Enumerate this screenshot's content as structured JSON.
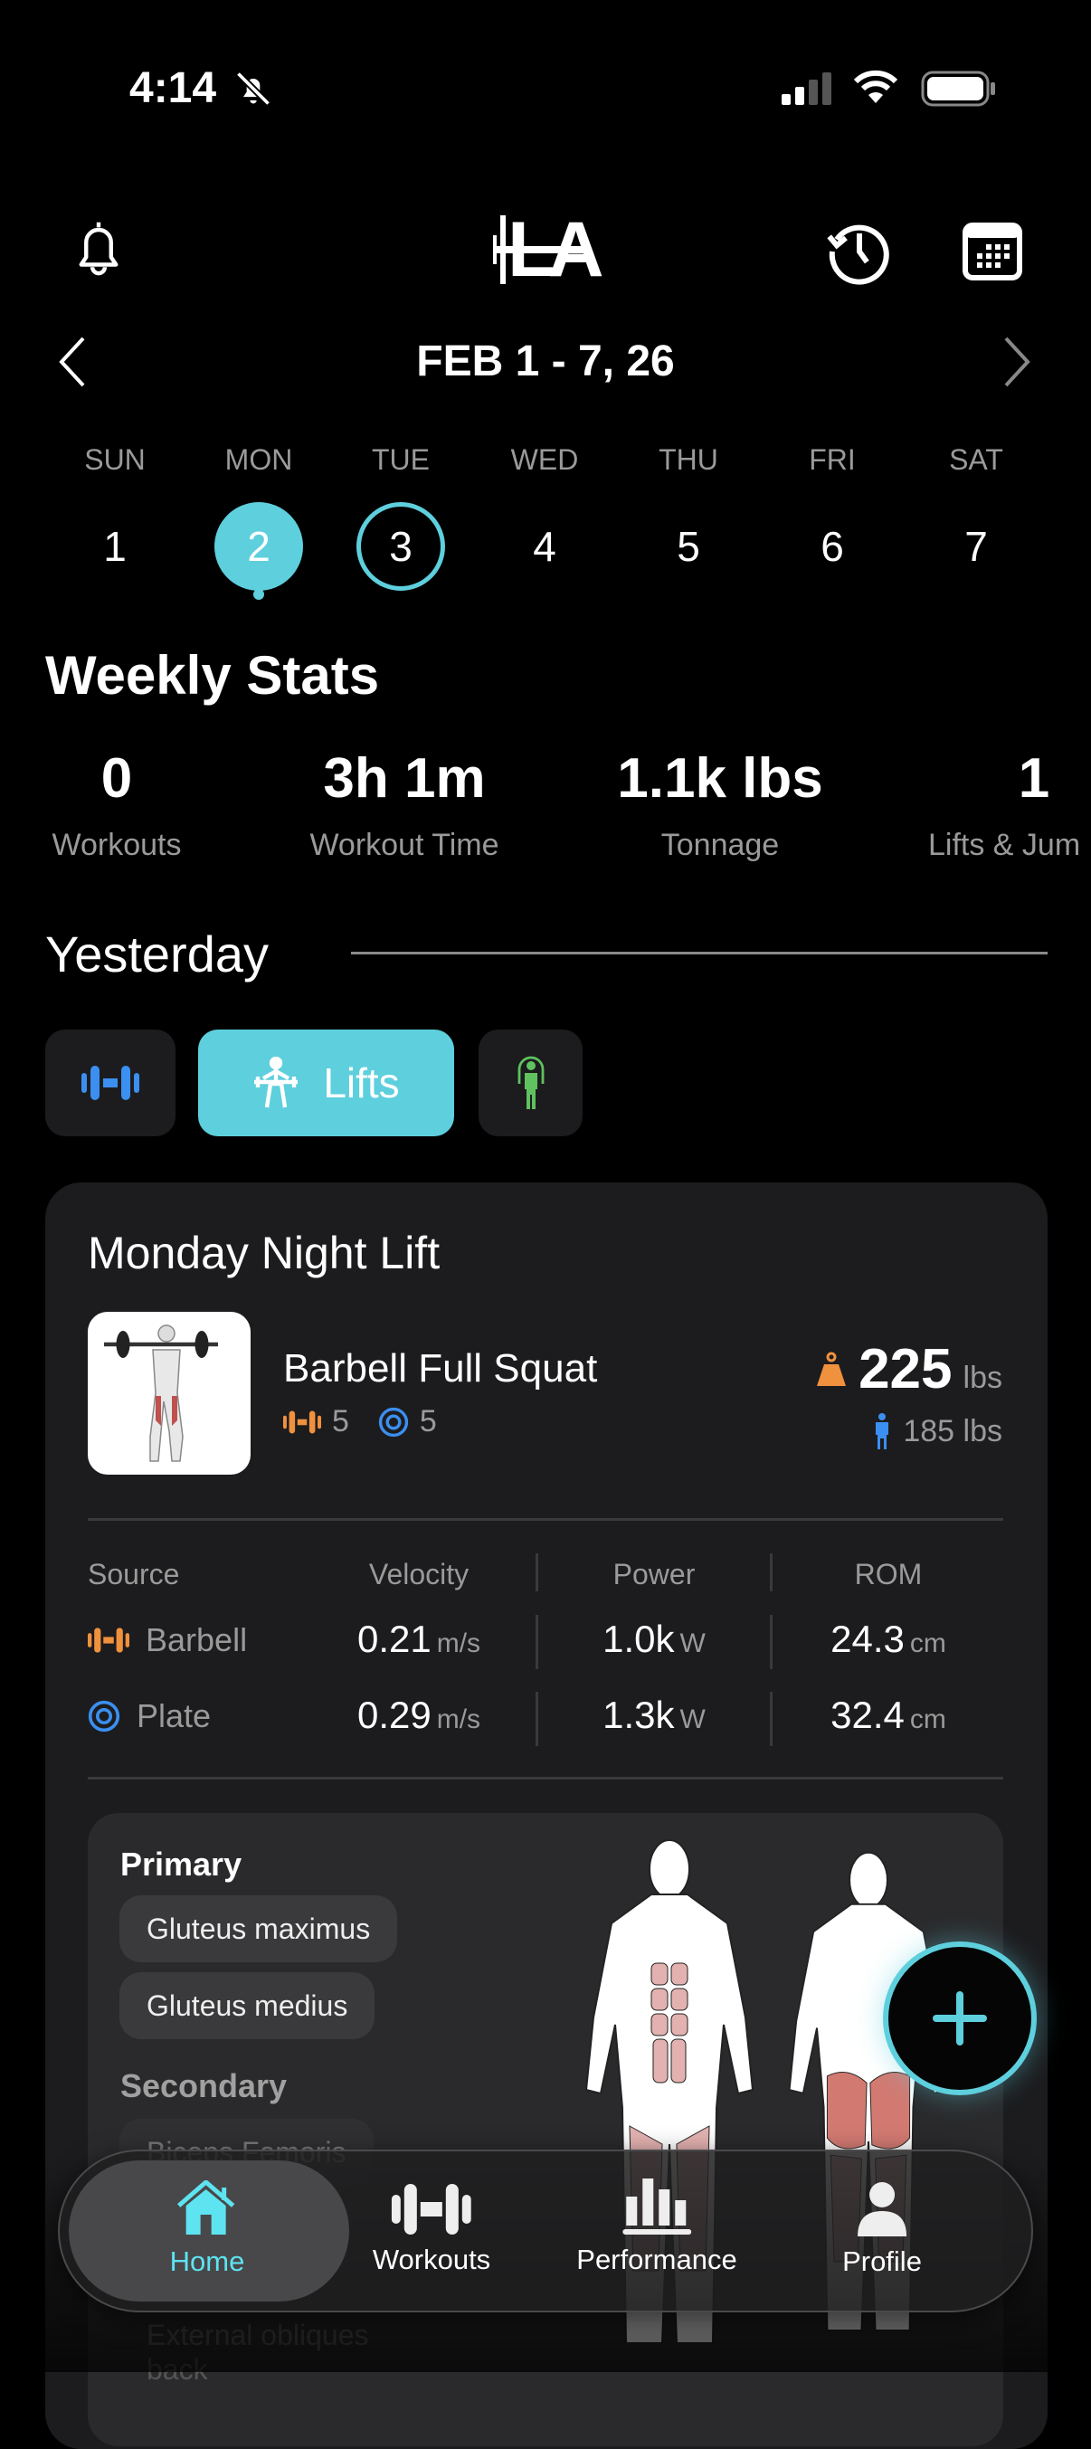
{
  "status_bar": {
    "time": "4:14",
    "icons": [
      "bell-slash-icon",
      "signal-icon",
      "wifi-icon",
      "battery-icon"
    ]
  },
  "header": {
    "logo": "LA",
    "icons": [
      "bell-icon",
      "history-icon",
      "calendar-icon"
    ]
  },
  "week_nav": {
    "label": "FEB 1 - 7, 26"
  },
  "days": [
    {
      "label": "SUN",
      "num": "1"
    },
    {
      "label": "MON",
      "num": "2",
      "selected": true,
      "has_activity": true
    },
    {
      "label": "TUE",
      "num": "3",
      "today": true
    },
    {
      "label": "WED",
      "num": "4"
    },
    {
      "label": "THU",
      "num": "5"
    },
    {
      "label": "FRI",
      "num": "6"
    },
    {
      "label": "SAT",
      "num": "7"
    }
  ],
  "weekly_stats": {
    "title": "Weekly Stats",
    "items": [
      {
        "value": "0",
        "label": "Workouts"
      },
      {
        "value": "3h 1m",
        "label": "Workout Time"
      },
      {
        "value": "1.1k lbs",
        "label": "Tonnage"
      },
      {
        "value": "1",
        "label": "Lifts & Jum"
      }
    ]
  },
  "section": {
    "title": "Yesterday"
  },
  "filters": {
    "lifts_label": "Lifts",
    "icons": [
      "dumbbell-icon",
      "weightlifter-icon",
      "jump-rope-icon"
    ]
  },
  "workout": {
    "title": "Monday Night Lift",
    "exercise": {
      "name": "Barbell Full Squat",
      "barbell_reps": "5",
      "plate_reps": "5",
      "weight": "225",
      "weight_unit": "lbs",
      "bodyweight": "185 lbs"
    },
    "table": {
      "headers": [
        "Source",
        "Velocity",
        "Power",
        "ROM"
      ],
      "rows": [
        {
          "source": "Barbell",
          "velocity": "0.21",
          "velocity_unit": "m/s",
          "power": "1.0k",
          "power_unit": "W",
          "rom": "24.3",
          "rom_unit": "cm"
        },
        {
          "source": "Plate",
          "velocity": "0.29",
          "velocity_unit": "m/s",
          "power": "1.3k",
          "power_unit": "W",
          "rom": "32.4",
          "rom_unit": "cm"
        }
      ]
    },
    "muscles": {
      "primary_title": "Primary",
      "primary": [
        "Gluteus maximus",
        "Gluteus medius"
      ],
      "secondary_title": "Secondary",
      "secondary": [
        "Biceps Femoris",
        "External obliques back"
      ]
    }
  },
  "colors": {
    "accent": "#5ecfdd",
    "orange": "#f0913e",
    "blue": "#3b8ff0",
    "green": "#5fc25e"
  },
  "tab_bar": {
    "items": [
      {
        "label": "Home",
        "active": true
      },
      {
        "label": "Workouts"
      },
      {
        "label": "Performance"
      },
      {
        "label": "Profile"
      }
    ]
  }
}
